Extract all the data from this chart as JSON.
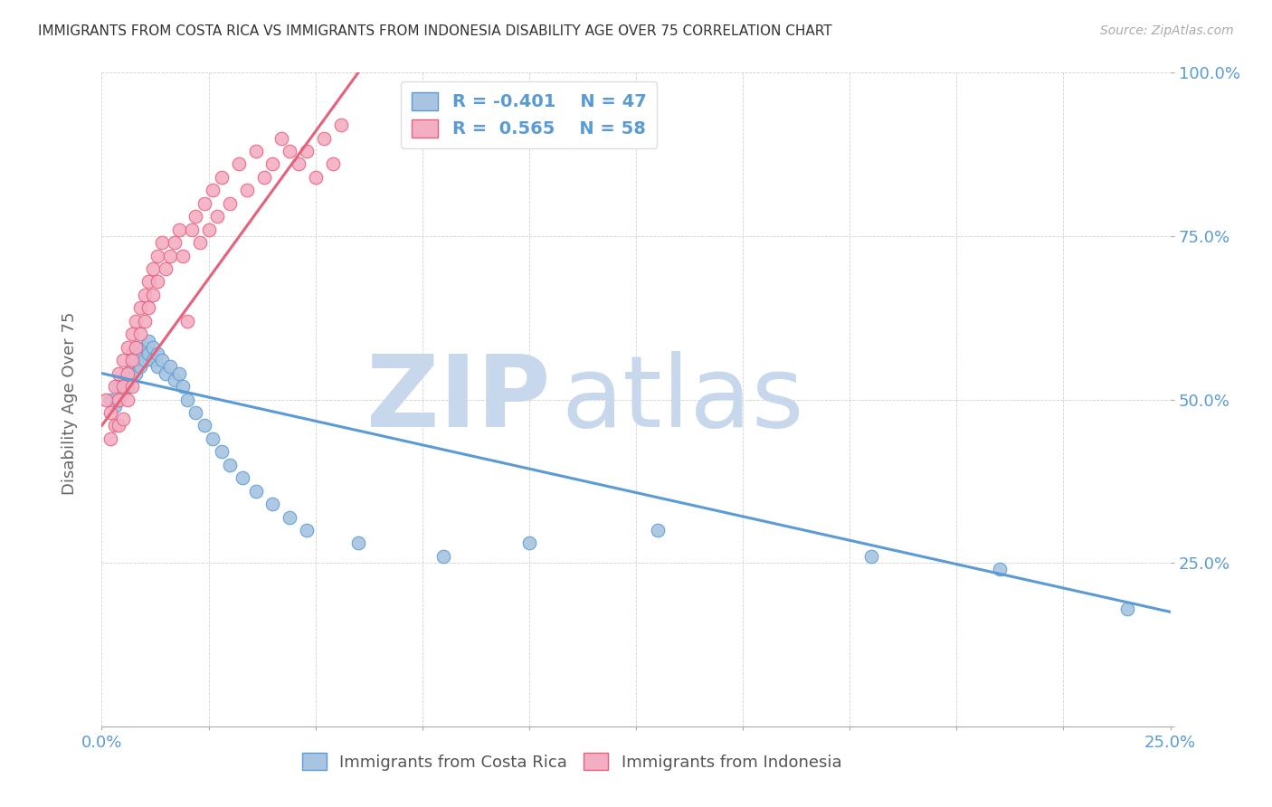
{
  "title": "IMMIGRANTS FROM COSTA RICA VS IMMIGRANTS FROM INDONESIA DISABILITY AGE OVER 75 CORRELATION CHART",
  "source": "Source: ZipAtlas.com",
  "ylabel": "Disability Age Over 75",
  "xlim": [
    0,
    0.25
  ],
  "ylim": [
    0,
    1.0
  ],
  "legend_blue_r": "R = -0.401",
  "legend_blue_n": "N = 47",
  "legend_pink_r": "R =  0.565",
  "legend_pink_n": "N = 58",
  "blue_color": "#a8c4e0",
  "pink_color": "#f4aec4",
  "blue_line_color": "#5b9bd5",
  "pink_line_color": "#e8607a",
  "legend_text_color": "#5b9bd5",
  "watermark_color": "#c8d8ec",
  "blue_label": "Immigrants from Costa Rica",
  "pink_label": "Immigrants from Indonesia",
  "blue_scatter_x": [
    0.002,
    0.003,
    0.004,
    0.004,
    0.005,
    0.005,
    0.006,
    0.006,
    0.007,
    0.007,
    0.008,
    0.008,
    0.008,
    0.009,
    0.009,
    0.01,
    0.01,
    0.011,
    0.011,
    0.012,
    0.012,
    0.013,
    0.013,
    0.014,
    0.015,
    0.016,
    0.017,
    0.018,
    0.019,
    0.02,
    0.022,
    0.024,
    0.026,
    0.028,
    0.03,
    0.033,
    0.036,
    0.04,
    0.044,
    0.048,
    0.06,
    0.08,
    0.1,
    0.13,
    0.18,
    0.21,
    0.24
  ],
  "blue_scatter_y": [
    0.5,
    0.49,
    0.52,
    0.5,
    0.51,
    0.53,
    0.54,
    0.52,
    0.55,
    0.57,
    0.58,
    0.56,
    0.54,
    0.57,
    0.55,
    0.58,
    0.56,
    0.59,
    0.57,
    0.58,
    0.56,
    0.57,
    0.55,
    0.56,
    0.54,
    0.55,
    0.53,
    0.54,
    0.52,
    0.5,
    0.48,
    0.46,
    0.44,
    0.42,
    0.4,
    0.38,
    0.36,
    0.34,
    0.32,
    0.3,
    0.28,
    0.26,
    0.28,
    0.3,
    0.26,
    0.24,
    0.18
  ],
  "pink_scatter_x": [
    0.001,
    0.002,
    0.002,
    0.003,
    0.003,
    0.004,
    0.004,
    0.004,
    0.005,
    0.005,
    0.005,
    0.006,
    0.006,
    0.006,
    0.007,
    0.007,
    0.007,
    0.008,
    0.008,
    0.009,
    0.009,
    0.01,
    0.01,
    0.011,
    0.011,
    0.012,
    0.012,
    0.013,
    0.013,
    0.014,
    0.015,
    0.016,
    0.017,
    0.018,
    0.019,
    0.02,
    0.021,
    0.022,
    0.023,
    0.024,
    0.025,
    0.026,
    0.027,
    0.028,
    0.03,
    0.032,
    0.034,
    0.036,
    0.038,
    0.04,
    0.042,
    0.044,
    0.046,
    0.048,
    0.05,
    0.052,
    0.054,
    0.056
  ],
  "pink_scatter_y": [
    0.5,
    0.48,
    0.44,
    0.52,
    0.46,
    0.54,
    0.5,
    0.46,
    0.56,
    0.52,
    0.47,
    0.58,
    0.54,
    0.5,
    0.6,
    0.56,
    0.52,
    0.62,
    0.58,
    0.64,
    0.6,
    0.66,
    0.62,
    0.68,
    0.64,
    0.7,
    0.66,
    0.72,
    0.68,
    0.74,
    0.7,
    0.72,
    0.74,
    0.76,
    0.72,
    0.62,
    0.76,
    0.78,
    0.74,
    0.8,
    0.76,
    0.82,
    0.78,
    0.84,
    0.8,
    0.86,
    0.82,
    0.88,
    0.84,
    0.86,
    0.9,
    0.88,
    0.86,
    0.88,
    0.84,
    0.9,
    0.86,
    0.92
  ],
  "blue_trend_x": [
    0.0,
    0.25
  ],
  "blue_trend_y": [
    0.54,
    0.175
  ],
  "pink_trend_x": [
    0.0,
    0.06
  ],
  "pink_trend_y": [
    0.46,
    1.0
  ]
}
